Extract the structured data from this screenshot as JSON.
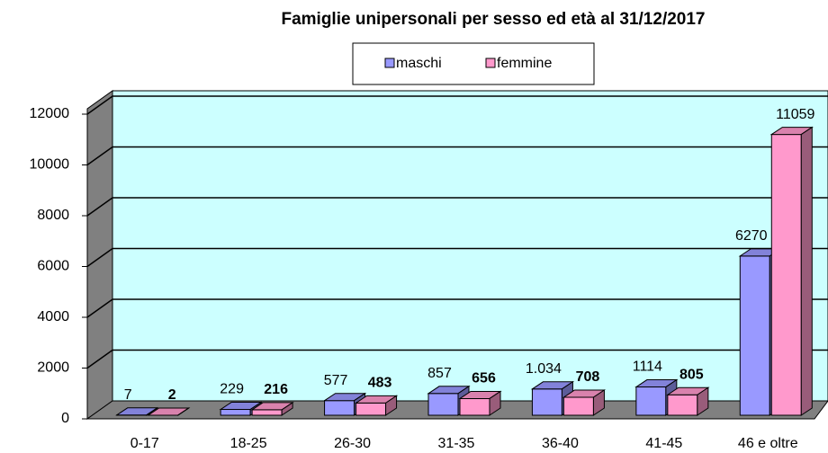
{
  "chart_data": {
    "type": "bar3d",
    "title": "Famiglie unipersonali per sesso ed età al 31/12/2017",
    "categories": [
      "0-17",
      "18-25",
      "26-30",
      "31-35",
      "36-40",
      "41-45",
      "46 e oltre"
    ],
    "series": [
      {
        "name": "maschi",
        "color": "#9999ff",
        "values": [
          7,
          229,
          577,
          857,
          1034,
          1114,
          6270
        ],
        "value_labels": [
          "7",
          "229",
          "577",
          "857",
          "1.034",
          "1114",
          "6270"
        ]
      },
      {
        "name": "femmine",
        "color": "#ff99cc",
        "values": [
          2,
          216,
          483,
          656,
          708,
          805,
          11059
        ]
      }
    ],
    "ylim": [
      0,
      12000
    ],
    "yticks": [
      0,
      2000,
      4000,
      6000,
      8000,
      10000,
      12000
    ],
    "grid": true,
    "legend": "top"
  }
}
